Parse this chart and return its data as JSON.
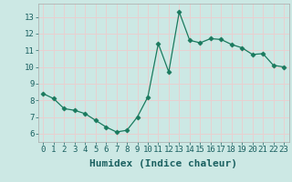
{
  "x": [
    0,
    1,
    2,
    3,
    4,
    5,
    6,
    7,
    8,
    9,
    10,
    11,
    12,
    13,
    14,
    15,
    16,
    17,
    18,
    19,
    20,
    21,
    22,
    23
  ],
  "y": [
    8.4,
    8.1,
    7.5,
    7.4,
    7.2,
    6.8,
    6.4,
    6.1,
    6.2,
    7.0,
    8.2,
    11.4,
    9.7,
    13.3,
    11.6,
    11.45,
    11.7,
    11.65,
    11.35,
    11.15,
    10.75,
    10.8,
    10.1,
    10.0
  ],
  "line_color": "#1a7a5e",
  "marker": "D",
  "markersize": 2.5,
  "bg_color": "#cce8e4",
  "grid_color": "#e8d0d0",
  "xlabel": "Humidex (Indice chaleur)",
  "ylim": [
    5.5,
    13.8
  ],
  "xlim": [
    -0.5,
    23.5
  ],
  "yticks": [
    6,
    7,
    8,
    9,
    10,
    11,
    12,
    13
  ],
  "xticks": [
    0,
    1,
    2,
    3,
    4,
    5,
    6,
    7,
    8,
    9,
    10,
    11,
    12,
    13,
    14,
    15,
    16,
    17,
    18,
    19,
    20,
    21,
    22,
    23
  ],
  "xtick_labels": [
    "0",
    "1",
    "2",
    "3",
    "4",
    "5",
    "6",
    "7",
    "8",
    "9",
    "10",
    "11",
    "12",
    "13",
    "14",
    "15",
    "16",
    "17",
    "18",
    "19",
    "20",
    "21",
    "22",
    "23"
  ],
  "tick_fontsize": 6.5,
  "xlabel_fontsize": 8
}
